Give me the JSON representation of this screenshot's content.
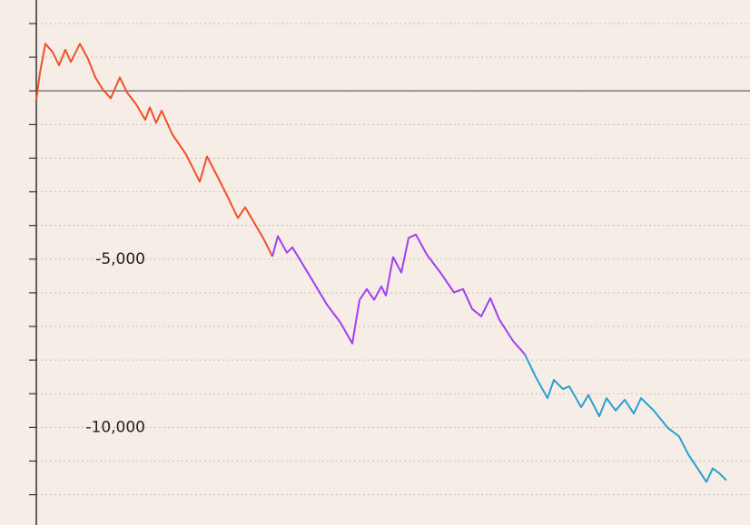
{
  "chart_data": {
    "type": "line",
    "xlim": [
      0,
      786
    ],
    "ylim": [
      -12900,
      2700
    ],
    "yticks": [
      {
        "value": -5000,
        "label": "-5,000"
      },
      {
        "value": -10000,
        "label": "-10,000"
      }
    ],
    "minor_yticks": [
      2000,
      1000,
      0,
      -1000,
      -2000,
      -3000,
      -4000,
      -5000,
      -6000,
      -7000,
      -8000,
      -9000,
      -10000,
      -11000,
      -12000
    ],
    "grid": true,
    "zero_line": true,
    "series": [
      {
        "color": "#f0502a",
        "x": [
          0,
          4,
          10,
          18,
          25,
          32,
          38,
          48,
          57,
          65,
          73,
          82,
          92,
          100,
          110,
          120,
          125,
          132,
          138,
          150,
          165,
          180,
          188,
          200,
          210,
          222,
          230,
          240,
          250,
          260
        ],
        "values": [
          -270,
          540,
          1400,
          1150,
          760,
          1220,
          860,
          1400,
          950,
          400,
          50,
          -220,
          400,
          -50,
          -400,
          -860,
          -490,
          -950,
          -590,
          -1300,
          -1890,
          -2700,
          -1950,
          -2570,
          -3110,
          -3780,
          -3460,
          -3920,
          -4380,
          -4920
        ]
      },
      {
        "color": "#a040f0",
        "x": [
          260,
          266,
          276,
          282,
          290,
          305,
          320,
          335,
          348,
          356,
          364,
          372,
          380,
          385,
          393,
          402,
          410,
          418,
          430,
          445,
          460,
          470,
          480,
          490,
          500,
          510,
          525,
          538
        ],
        "values": [
          -4920,
          -4320,
          -4810,
          -4650,
          -5000,
          -5670,
          -6350,
          -6890,
          -7510,
          -6210,
          -5890,
          -6210,
          -5810,
          -6080,
          -4940,
          -5400,
          -4370,
          -4270,
          -4860,
          -5400,
          -5990,
          -5890,
          -6480,
          -6700,
          -6160,
          -6800,
          -7430,
          -7830
        ]
      },
      {
        "color": "#2aa0d0",
        "x": [
          538,
          550,
          563,
          570,
          580,
          587,
          600,
          608,
          620,
          628,
          638,
          648,
          658,
          666,
          680,
          695,
          708,
          718,
          730,
          738,
          745,
          752,
          760
        ],
        "values": [
          -7830,
          -8500,
          -9130,
          -8590,
          -8860,
          -8780,
          -9400,
          -9040,
          -9670,
          -9130,
          -9500,
          -9180,
          -9590,
          -9130,
          -9500,
          -10000,
          -10270,
          -10800,
          -11290,
          -11620,
          -11220,
          -11360,
          -11570
        ]
      }
    ]
  }
}
